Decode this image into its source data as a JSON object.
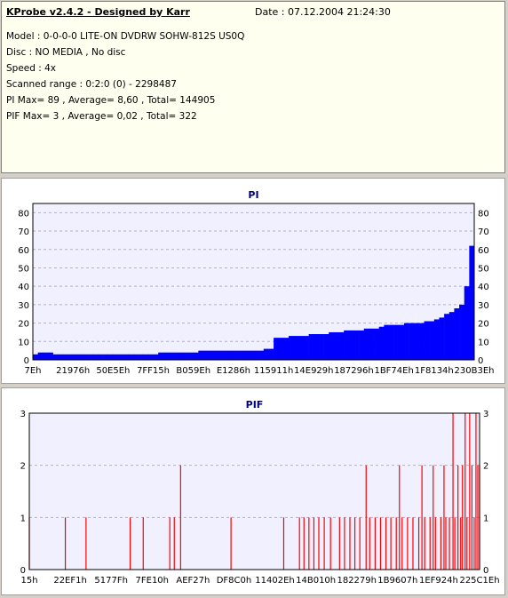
{
  "header": {
    "title": "KProbe v2.4.2 - Designed by Karr",
    "date": "Date : 07.12.2004 21:24:30"
  },
  "info": {
    "model": "Model : 0-0-0-0 LITE-ON DVDRW SOHW-812S  US0Q",
    "disc": "Disc : NO MEDIA , No disc",
    "speed": "Speed : 4x",
    "range": "Scanned range : 0:2:0 (0) - 2298487",
    "pi": "PI Max= 89 , Average= 8,60 , Total= 144905",
    "pif": "PIF Max= 3 , Average= 0,02 , Total= 322"
  },
  "colors": {
    "pi": "#0000ff",
    "pif": "#ff0000",
    "plot_bg": "#f0f0ff",
    "title": "#000080"
  },
  "chart_data": [
    {
      "type": "bar",
      "title": "PI",
      "ylim": [
        0,
        85
      ],
      "yticks": [
        0,
        10,
        20,
        30,
        40,
        50,
        60,
        70,
        80
      ],
      "xlim": [
        0,
        2298487
      ],
      "xticks": [
        "7Eh",
        "21976h",
        "50E5Eh",
        "7FF15h",
        "B059Eh",
        "E1286h",
        "115911h",
        "14E929h",
        "187296h",
        "1BF74Eh",
        "1F8134h",
        "230B3Eh"
      ],
      "grid": true,
      "series": [
        {
          "values": [
            3,
            4,
            4,
            4,
            3,
            3,
            3,
            3,
            3,
            3,
            3,
            3,
            3,
            3,
            3,
            3,
            3,
            3,
            3,
            3,
            3,
            3,
            3,
            3,
            3,
            4,
            4,
            4,
            4,
            4,
            4,
            4,
            4,
            5,
            5,
            5,
            5,
            5,
            5,
            5,
            5,
            5,
            5,
            5,
            5,
            5,
            6,
            6,
            12,
            12,
            12,
            13,
            13,
            13,
            13,
            14,
            14,
            14,
            14,
            15,
            15,
            15,
            16,
            16,
            16,
            16,
            17,
            17,
            17,
            18,
            19,
            19,
            19,
            19,
            20,
            20,
            20,
            20,
            21,
            21,
            22,
            23,
            25,
            26,
            28,
            30,
            40,
            62
          ]
        }
      ]
    },
    {
      "type": "bar",
      "title": "PIF",
      "ylim": [
        0,
        3
      ],
      "yticks": [
        0,
        1,
        2,
        3
      ],
      "xlim": [
        0,
        2298487
      ],
      "xticks": [
        "15h",
        "22EF1h",
        "5177Fh",
        "7FE10h",
        "AEF27h",
        "DF8C0h",
        "11402Eh",
        "14B010h",
        "182279h",
        "1B9607h",
        "1EF924h",
        "225C1Eh"
      ],
      "grid": true,
      "series": [
        {
          "points": [
            [
              0.0,
              1
            ],
            [
              0.08,
              1
            ],
            [
              0.126,
              1
            ],
            [
              0.224,
              1
            ],
            [
              0.253,
              1
            ],
            [
              0.312,
              1
            ],
            [
              0.322,
              1
            ],
            [
              0.336,
              2
            ],
            [
              0.448,
              1
            ],
            [
              0.565,
              1
            ],
            [
              0.6,
              1
            ],
            [
              0.61,
              1
            ],
            [
              0.621,
              1
            ],
            [
              0.632,
              1
            ],
            [
              0.643,
              1
            ],
            [
              0.655,
              1
            ],
            [
              0.669,
              1
            ],
            [
              0.689,
              1
            ],
            [
              0.7,
              1
            ],
            [
              0.712,
              1
            ],
            [
              0.723,
              1
            ],
            [
              0.734,
              1
            ],
            [
              0.748,
              2
            ],
            [
              0.756,
              1
            ],
            [
              0.768,
              1
            ],
            [
              0.78,
              1
            ],
            [
              0.792,
              1
            ],
            [
              0.803,
              1
            ],
            [
              0.815,
              1
            ],
            [
              0.822,
              2
            ],
            [
              0.828,
              1
            ],
            [
              0.84,
              1
            ],
            [
              0.852,
              1
            ],
            [
              0.865,
              1
            ],
            [
              0.872,
              2
            ],
            [
              0.878,
              1
            ],
            [
              0.89,
              1
            ],
            [
              0.897,
              2
            ],
            [
              0.902,
              1
            ],
            [
              0.914,
              1
            ],
            [
              0.921,
              2
            ],
            [
              0.925,
              1
            ],
            [
              0.933,
              1
            ],
            [
              0.941,
              3
            ],
            [
              0.945,
              1
            ],
            [
              0.952,
              2
            ],
            [
              0.958,
              1
            ],
            [
              0.962,
              2
            ],
            [
              0.968,
              3
            ],
            [
              0.972,
              1
            ],
            [
              0.978,
              3
            ],
            [
              0.983,
              2
            ],
            [
              0.988,
              1
            ],
            [
              0.992,
              3
            ],
            [
              0.996,
              2
            ],
            [
              1.0,
              2
            ]
          ]
        }
      ]
    }
  ]
}
